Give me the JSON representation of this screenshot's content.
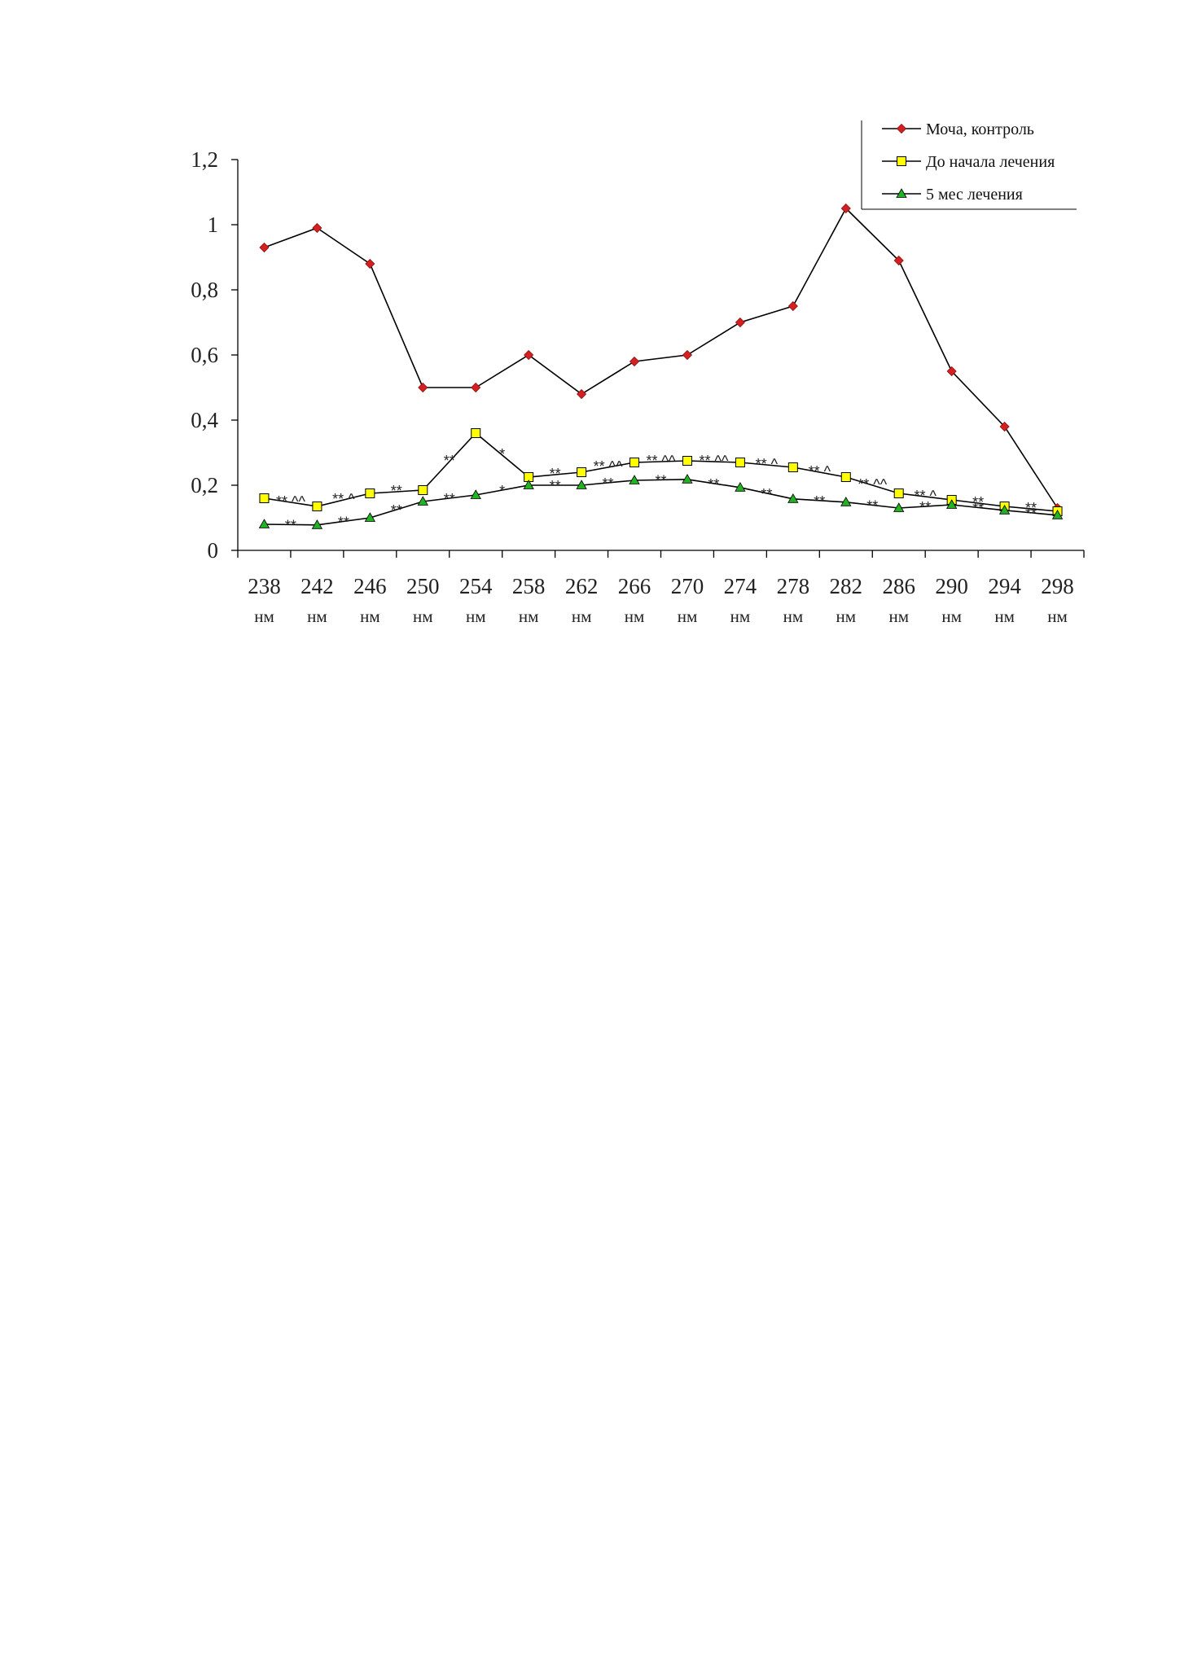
{
  "chart_data": {
    "type": "line",
    "title": "",
    "xlabel": "",
    "ylabel": "",
    "categories": [
      "238",
      "242",
      "246",
      "250",
      "254",
      "258",
      "262",
      "266",
      "270",
      "274",
      "278",
      "282",
      "286",
      "290",
      "294",
      "298"
    ],
    "x_unit": "нм",
    "ylim": [
      0,
      1.2
    ],
    "y_ticks": [
      "0",
      "0,2",
      "0,4",
      "0,6",
      "0,8",
      "1",
      "1,2"
    ],
    "grid": false,
    "legend_position": "top-right",
    "series": [
      {
        "name": "Моча, контроль",
        "color": "#d42020",
        "marker": "diamond",
        "values": [
          0.93,
          0.99,
          0.88,
          0.5,
          0.5,
          0.6,
          0.48,
          0.58,
          0.6,
          0.7,
          0.75,
          1.05,
          0.89,
          0.55,
          0.38,
          0.13
        ]
      },
      {
        "name": "До начала лечения",
        "color": "#ffff00",
        "marker": "square",
        "values": [
          0.16,
          0.135,
          0.175,
          0.185,
          0.36,
          0.225,
          0.24,
          0.27,
          0.275,
          0.27,
          0.255,
          0.225,
          0.175,
          0.155,
          0.135,
          0.12
        ]
      },
      {
        "name": "5 мес лечения",
        "color": "#22b222",
        "marker": "triangle",
        "values": [
          0.08,
          0.078,
          0.1,
          0.15,
          0.17,
          0.2,
          0.2,
          0.215,
          0.218,
          0.193,
          0.158,
          0.148,
          0.13,
          0.14,
          0.123,
          0.108
        ]
      }
    ],
    "annotations": {
      "upper": [
        "** ^^",
        "** ^",
        "**",
        "**",
        "*",
        "**",
        "** ^^",
        "** ^^",
        "** ^^",
        "** ^",
        "** ^",
        "** ^^",
        "** ^",
        "**",
        "**"
      ],
      "lower": [
        "**",
        "**",
        "**",
        "**",
        "*",
        "**",
        "**",
        "**",
        "**",
        "**",
        "**",
        "**",
        "**",
        "**",
        "**"
      ]
    }
  }
}
